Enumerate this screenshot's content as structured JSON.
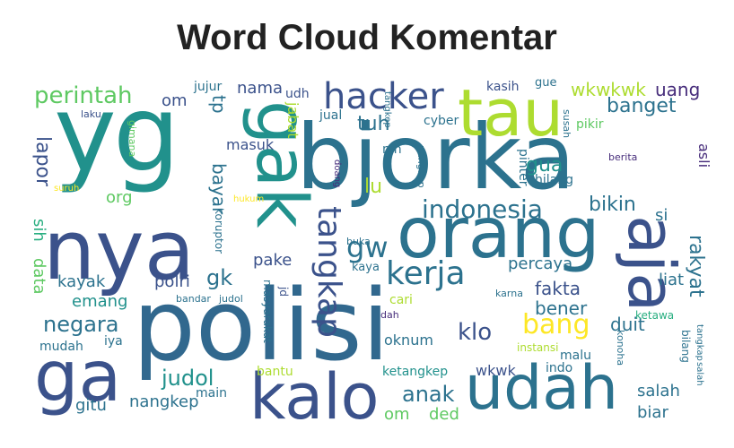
{
  "title": "Word Cloud Komentar",
  "palette": {
    "dark_purple": "#472d7b",
    "blue": "#3b528b",
    "teal_blue": "#2c728e",
    "teal": "#21918c",
    "green": "#28ae80",
    "light_green": "#5ec962",
    "yellow_green": "#addc30",
    "yellow": "#fde725"
  },
  "words": [
    "yg",
    "bjorka",
    "nya",
    "polisi",
    "gak",
    "orang",
    "aja",
    "tau",
    "kalo",
    "udah",
    "ga",
    "hacker",
    "kerja",
    "tangkap",
    "gw",
    "indonesia",
    "perintah",
    "bang",
    "klo",
    "lapor",
    "bayar",
    "gk",
    "negara",
    "judol",
    "anak",
    "tuh",
    "lu",
    "gua",
    "bikin",
    "rakyat",
    "banget",
    "wkwkwk",
    "uang",
    "nama",
    "tp",
    "jabat",
    "masuk",
    "fakta",
    "percaya",
    "bener",
    "duit",
    "liat",
    "pake",
    "polri",
    "emang",
    "kayak",
    "data",
    "sih",
    "org",
    "om",
    "mudah",
    "iya",
    "gitu",
    "nangkep",
    "main",
    "bantu",
    "ketangkep",
    "wkwk",
    "indo",
    "salah",
    "biar",
    "malu",
    "instansi",
    "oknum",
    "ded",
    "kasih",
    "gue",
    "jujur",
    "udh",
    "jual",
    "cyber",
    "pikir",
    "susah",
    "asli",
    "berita",
    "pinter",
    "hilang",
    "si",
    "konoha",
    "ketawa",
    "bilang",
    "karna",
    "cari",
    "dah",
    "kaya",
    "buka",
    "koruptor",
    "masyarakat",
    "bandar",
    "gimana",
    "laku",
    "hukum",
    "suruh",
    "doang",
    "nih",
    "jd",
    "tangkep"
  ]
}
